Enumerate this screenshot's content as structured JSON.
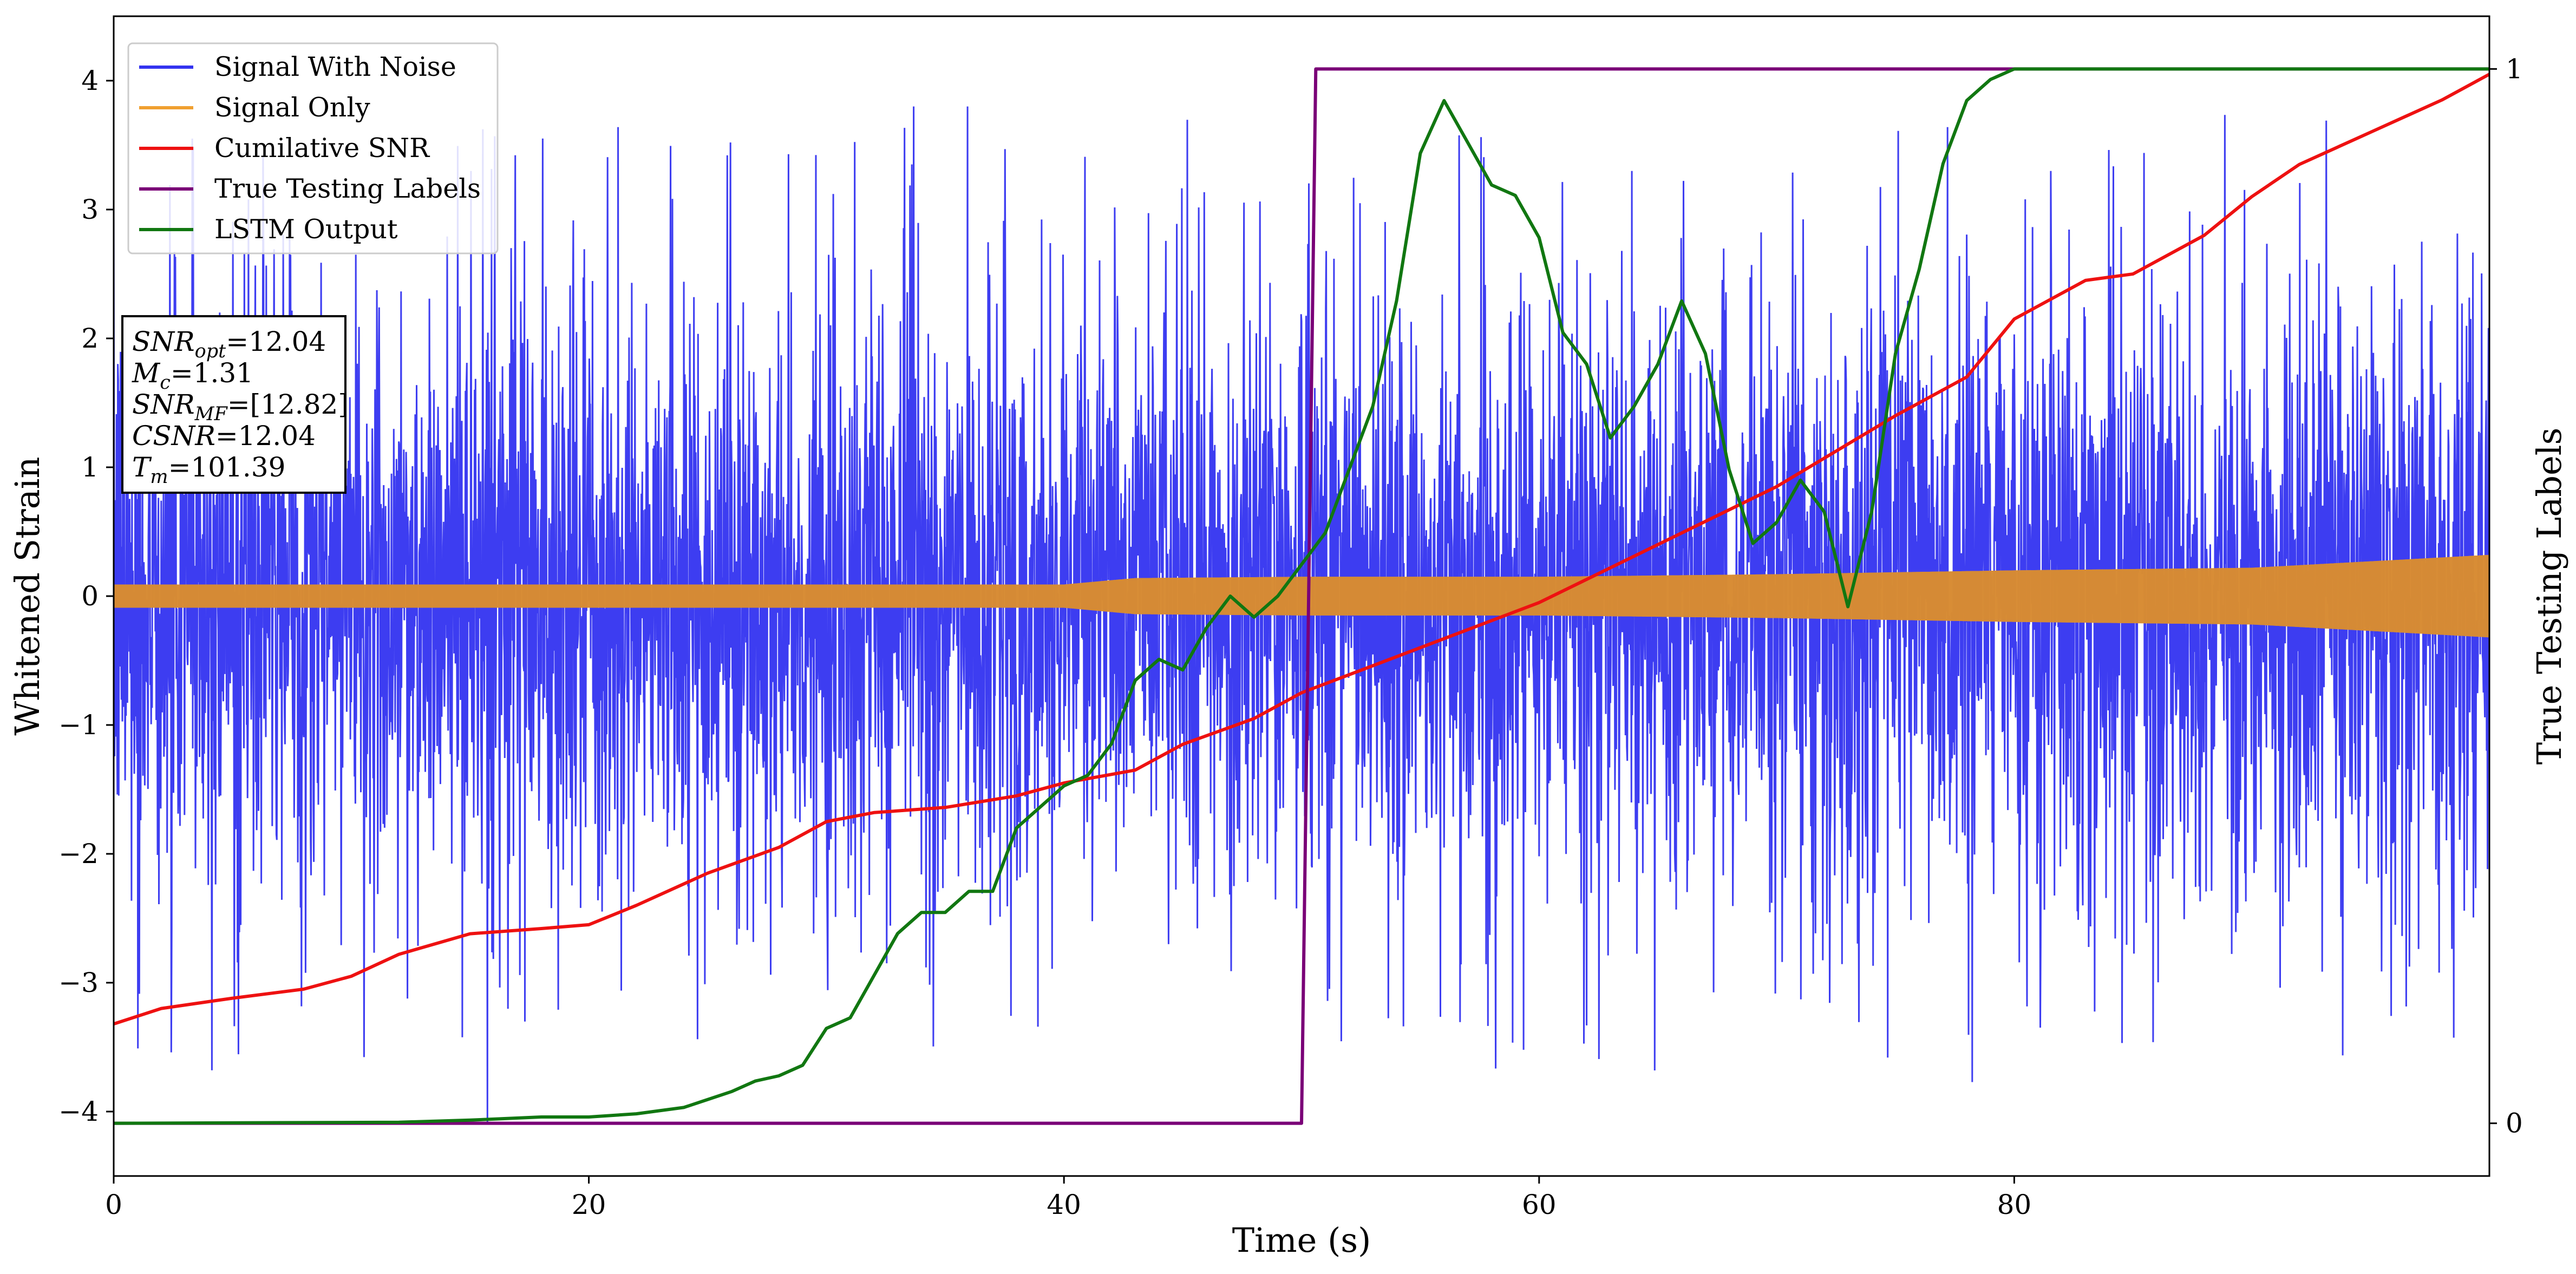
{
  "chart_data": {
    "type": "line",
    "xlabel": "Time (s)",
    "ylabel": "Whitened Strain",
    "y2label": "True Testing Labels",
    "xlim": [
      0,
      100
    ],
    "ylim": [
      -4.5,
      4.5
    ],
    "y2lim": [
      -0.05,
      1.05
    ],
    "xticks": [
      0,
      20,
      40,
      60,
      80
    ],
    "yticks": [
      -4,
      -3,
      -2,
      -1,
      0,
      1,
      2,
      3,
      4
    ],
    "y2ticks": [
      0,
      1
    ],
    "grid": false,
    "legend_position": "top-left",
    "series": [
      {
        "name": "Signal With Noise",
        "axis": "left",
        "color": "#3333f0",
        "style": "dense noise, roughly uniform; peaks reach about +3.8 and troughs about -4.1",
        "envelope": {
          "typical_amplitude": 2.2,
          "max": 3.8,
          "min": -4.1
        }
      },
      {
        "name": "Signal Only",
        "axis": "left",
        "color": "#f0a030",
        "style": "chirp with slowly growing amplitude",
        "x": [
          0,
          20,
          30,
          40,
          43,
          50,
          60,
          70,
          80,
          90,
          100
        ],
        "amplitude": [
          0.09,
          0.09,
          0.09,
          0.09,
          0.14,
          0.15,
          0.15,
          0.17,
          0.2,
          0.22,
          0.32
        ]
      },
      {
        "name": "Cumilative SNR",
        "axis": "left",
        "color": "#ee1111",
        "x": [
          0,
          2,
          5,
          8,
          10,
          12,
          15,
          18,
          20,
          22,
          25,
          28,
          30,
          32,
          35,
          38,
          40,
          43,
          45,
          48,
          50,
          55,
          60,
          65,
          70,
          75,
          78,
          80,
          83,
          85,
          88,
          90,
          92,
          95,
          98,
          100
        ],
        "y": [
          -3.32,
          -3.2,
          -3.12,
          -3.05,
          -2.95,
          -2.78,
          -2.62,
          -2.58,
          -2.55,
          -2.4,
          -2.15,
          -1.95,
          -1.75,
          -1.68,
          -1.64,
          -1.55,
          -1.45,
          -1.35,
          -1.15,
          -0.95,
          -0.75,
          -0.4,
          -0.05,
          0.4,
          0.85,
          1.4,
          1.7,
          2.15,
          2.45,
          2.5,
          2.8,
          3.1,
          3.35,
          3.6,
          3.85,
          4.05
        ]
      },
      {
        "name": "True Testing Labels",
        "axis": "right",
        "color": "#7a0077",
        "x": [
          0,
          50.0,
          50.6,
          100
        ],
        "y": [
          0,
          0,
          1,
          1
        ]
      },
      {
        "name": "LSTM Output",
        "axis": "right",
        "color": "#117711",
        "x": [
          0,
          12,
          15,
          18,
          20,
          22,
          24,
          26,
          27,
          28,
          29,
          30,
          31,
          32,
          33,
          34,
          35,
          36,
          37,
          38,
          39,
          40,
          41,
          42,
          43,
          44,
          45,
          46,
          47,
          48,
          49,
          50,
          51,
          52,
          53,
          54,
          55,
          56,
          57,
          58,
          59,
          60,
          61,
          62,
          63,
          64,
          65,
          66,
          67,
          68,
          69,
          70,
          71,
          72,
          73,
          74,
          75,
          76,
          77,
          78,
          79,
          80,
          81,
          82,
          83,
          84,
          85,
          90,
          100
        ],
        "y": [
          0,
          0.001,
          0.003,
          0.006,
          0.006,
          0.009,
          0.015,
          0.03,
          0.04,
          0.045,
          0.055,
          0.09,
          0.1,
          0.14,
          0.18,
          0.2,
          0.2,
          0.22,
          0.22,
          0.28,
          0.3,
          0.32,
          0.33,
          0.36,
          0.42,
          0.44,
          0.43,
          0.47,
          0.5,
          0.48,
          0.5,
          0.53,
          0.56,
          0.62,
          0.68,
          0.78,
          0.92,
          0.97,
          0.93,
          0.89,
          0.88,
          0.84,
          0.75,
          0.72,
          0.65,
          0.68,
          0.72,
          0.78,
          0.73,
          0.62,
          0.55,
          0.57,
          0.61,
          0.58,
          0.49,
          0.58,
          0.73,
          0.81,
          0.91,
          0.97,
          0.99,
          1.0,
          1.0,
          1.0,
          1.0,
          1.0,
          1.0,
          1.0,
          1.0
        ]
      }
    ]
  },
  "legend": {
    "items": [
      {
        "label": "Signal With Noise",
        "color": "#3333f0"
      },
      {
        "label": "Signal Only",
        "color": "#f0a030"
      },
      {
        "label": "Cumilative SNR",
        "color": "#ee1111"
      },
      {
        "label": "True Testing Labels",
        "color": "#7a0077"
      },
      {
        "label": "LSTM Output",
        "color": "#117711"
      }
    ]
  },
  "info_box": {
    "lines": [
      {
        "sym": "SNR",
        "sub": "opt",
        "value": "=12.04"
      },
      {
        "sym": "M",
        "sub": "c",
        "value": "=1.31"
      },
      {
        "sym": "SNR",
        "sub": "MF",
        "value": "=[12.82]"
      },
      {
        "sym": "CSNR",
        "sub": "",
        "value": "=12.04"
      },
      {
        "sym": "T",
        "sub": "m",
        "value": "=101.39"
      }
    ]
  }
}
